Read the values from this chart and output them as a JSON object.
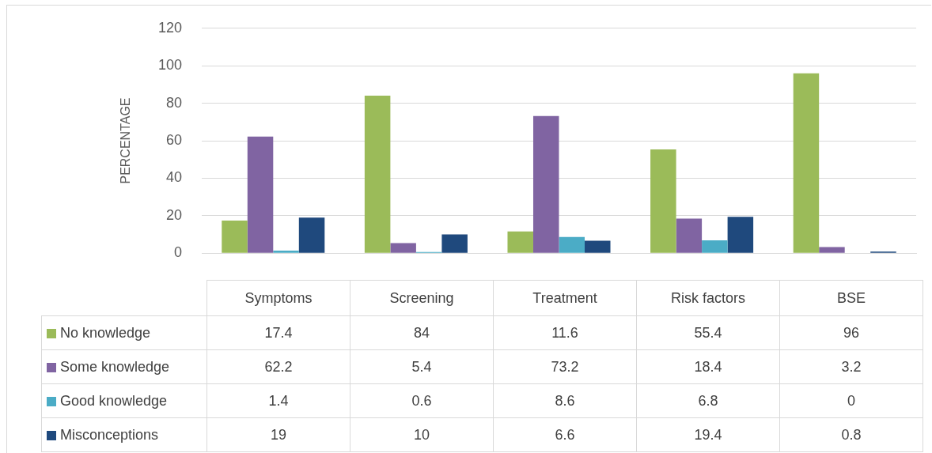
{
  "chart_data": {
    "type": "bar",
    "ylabel": "PERCENTAGE",
    "categories": [
      "Symptoms",
      "Screening",
      "Treatment",
      "Risk factors",
      "BSE"
    ],
    "series": [
      {
        "name": "No knowledge",
        "color": "#9bbb59",
        "values": [
          17.4,
          84,
          11.6,
          55.4,
          96
        ]
      },
      {
        "name": "Some knowledge",
        "color": "#8064a2",
        "values": [
          62.2,
          5.4,
          73.2,
          18.4,
          3.2
        ]
      },
      {
        "name": "Good knowledge",
        "color": "#4bacc6",
        "values": [
          1.4,
          0.6,
          8.6,
          6.8,
          0
        ]
      },
      {
        "name": "Misconceptions",
        "color": "#1f497d",
        "values": [
          19,
          10,
          6.6,
          19.4,
          0.8
        ]
      }
    ],
    "ylim": [
      0,
      120
    ],
    "yticks": [
      0,
      20,
      40,
      60,
      80,
      100,
      120
    ],
    "grid": "y",
    "legend": "bottom",
    "data_labels": true
  }
}
